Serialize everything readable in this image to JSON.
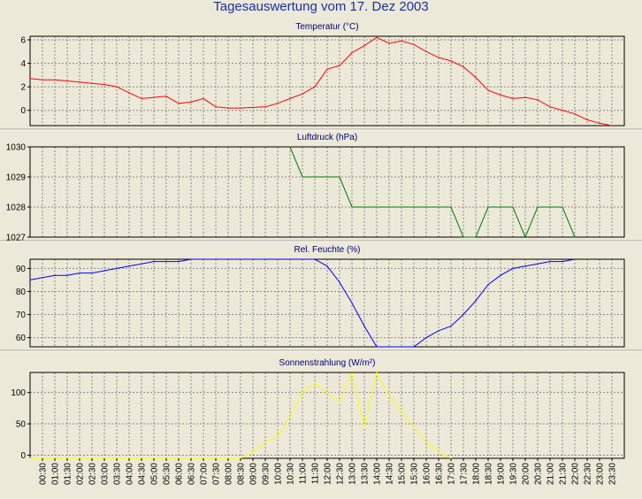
{
  "title": "Tagesauswertung vom 17. Dez 2003",
  "x_labels": [
    "00:30",
    "01:00",
    "01:30",
    "02:00",
    "02:30",
    "03:00",
    "03:30",
    "04:00",
    "04:30",
    "05:00",
    "05:30",
    "06:00",
    "06:30",
    "07:00",
    "07:30",
    "08:00",
    "08:30",
    "09:00",
    "09:30",
    "10:00",
    "10:30",
    "11:00",
    "11:30",
    "12:00",
    "12:30",
    "13:00",
    "13:30",
    "14:00",
    "14:30",
    "15:00",
    "15:30",
    "16:00",
    "16:30",
    "17:00",
    "17:30",
    "18:00",
    "18:30",
    "19:00",
    "19:30",
    "20:00",
    "20:30",
    "21:00",
    "21:30",
    "22:00",
    "22:30",
    "23:00",
    "23:30"
  ],
  "chart_data": [
    {
      "type": "line",
      "title": "Temperatur (°C)",
      "color": "#ff0000",
      "ylim": [
        -1.3,
        6.3
      ],
      "yticks": [
        0,
        2,
        4,
        6
      ],
      "grid": true,
      "x": [
        "00:00",
        "00:30",
        "01:00",
        "01:30",
        "02:00",
        "02:30",
        "03:00",
        "03:30",
        "04:00",
        "04:30",
        "05:00",
        "05:30",
        "06:00",
        "06:30",
        "07:00",
        "07:30",
        "08:00",
        "08:30",
        "09:00",
        "09:30",
        "10:00",
        "10:30",
        "11:00",
        "11:30",
        "12:00",
        "12:30",
        "13:00",
        "13:30",
        "14:00",
        "14:30",
        "15:00",
        "15:30",
        "16:00",
        "16:30",
        "17:00",
        "17:30",
        "18:00",
        "18:30",
        "19:00",
        "19:30",
        "20:00",
        "20:30",
        "21:00",
        "21:30",
        "22:00",
        "22:30",
        "23:00",
        "23:30"
      ],
      "y": [
        2.7,
        2.6,
        2.6,
        2.5,
        2.4,
        2.3,
        2.2,
        2.0,
        1.5,
        1.0,
        1.1,
        1.2,
        0.6,
        0.7,
        1.0,
        0.3,
        0.2,
        0.2,
        0.25,
        0.3,
        0.6,
        1.0,
        1.4,
        2.0,
        3.5,
        3.8,
        4.9,
        5.5,
        6.2,
        5.7,
        5.9,
        5.6,
        5.0,
        4.5,
        4.2,
        3.7,
        2.8,
        1.7,
        1.3,
        1.0,
        1.1,
        0.9,
        0.3,
        0.0,
        -0.3,
        -0.8,
        -1.1,
        -1.3
      ]
    },
    {
      "type": "line",
      "title": "Luftdruck (hPa)",
      "color": "#007a00",
      "ylim": [
        1027,
        1030
      ],
      "yticks": [
        1027,
        1028,
        1029,
        1030
      ],
      "grid": true,
      "x": [
        "10:30",
        "11:00",
        "11:30",
        "12:00",
        "12:30",
        "13:00",
        "13:30",
        "14:00",
        "14:30",
        "15:00",
        "15:30",
        "16:00",
        "16:30",
        "17:00",
        "17:30",
        "18:00",
        "18:30",
        "19:00",
        "19:30",
        "20:00",
        "20:30",
        "21:00",
        "21:30",
        "22:00"
      ],
      "y": [
        1030,
        1029,
        1029,
        1029,
        1029,
        1028,
        1028,
        1028,
        1028,
        1028,
        1028,
        1028,
        1028,
        1028,
        1027,
        1027,
        1028,
        1028,
        1028,
        1027,
        1028,
        1028,
        1028,
        1027
      ]
    },
    {
      "type": "line",
      "title": "Rel. Feuchte (%)",
      "color": "#0000ff",
      "ylim": [
        56,
        94
      ],
      "yticks": [
        60,
        70,
        80,
        90
      ],
      "grid": true,
      "x": [
        "00:00",
        "00:30",
        "01:00",
        "01:30",
        "02:00",
        "02:30",
        "03:00",
        "03:30",
        "04:00",
        "04:30",
        "05:00",
        "05:30",
        "06:00",
        "06:30",
        "07:00",
        "07:30",
        "08:00",
        "08:30",
        "09:00",
        "09:30",
        "10:00",
        "10:30",
        "11:00",
        "11:30",
        "12:00",
        "12:30",
        "13:00",
        "13:30",
        "14:00",
        "14:30",
        "15:00",
        "15:30",
        "16:00",
        "16:30",
        "17:00",
        "17:30",
        "18:00",
        "18:30",
        "19:00",
        "19:30",
        "20:00",
        "20:30",
        "21:00",
        "21:30",
        "22:00"
      ],
      "y": [
        85,
        86,
        87,
        87,
        88,
        88,
        89,
        90,
        91,
        92,
        93,
        93,
        93,
        94,
        94,
        94,
        94,
        94,
        94,
        94,
        94,
        94,
        94,
        94,
        91,
        84,
        75,
        65,
        56,
        56,
        56,
        56,
        60,
        63,
        65,
        70,
        76,
        83,
        87,
        90,
        91,
        92,
        93,
        93,
        94
      ]
    },
    {
      "type": "line",
      "title": "Sonnenstrahlung (W/m²)",
      "color": "#ffff00",
      "ylim": [
        -5,
        132
      ],
      "yticks": [
        0,
        50,
        100
      ],
      "grid": true,
      "x": [
        "00:00",
        "00:30",
        "01:00",
        "01:30",
        "02:00",
        "02:30",
        "03:00",
        "03:30",
        "04:00",
        "04:30",
        "05:00",
        "05:30",
        "06:00",
        "06:30",
        "07:00",
        "07:30",
        "08:00",
        "08:30",
        "09:00",
        "09:30",
        "10:00",
        "10:30",
        "11:00",
        "11:30",
        "12:00",
        "12:30",
        "13:00",
        "13:30",
        "14:00",
        "14:30",
        "15:00",
        "15:30",
        "16:00",
        "16:30",
        "17:00"
      ],
      "y": [
        -5,
        -5,
        -5,
        -5,
        -5,
        -5,
        -5,
        -5,
        -5,
        -5,
        -5,
        -5,
        -5,
        -5,
        -5,
        -5,
        -5,
        -5,
        5,
        20,
        30,
        60,
        100,
        115,
        100,
        85,
        130,
        45,
        132,
        95,
        70,
        45,
        20,
        5,
        -5
      ]
    }
  ]
}
